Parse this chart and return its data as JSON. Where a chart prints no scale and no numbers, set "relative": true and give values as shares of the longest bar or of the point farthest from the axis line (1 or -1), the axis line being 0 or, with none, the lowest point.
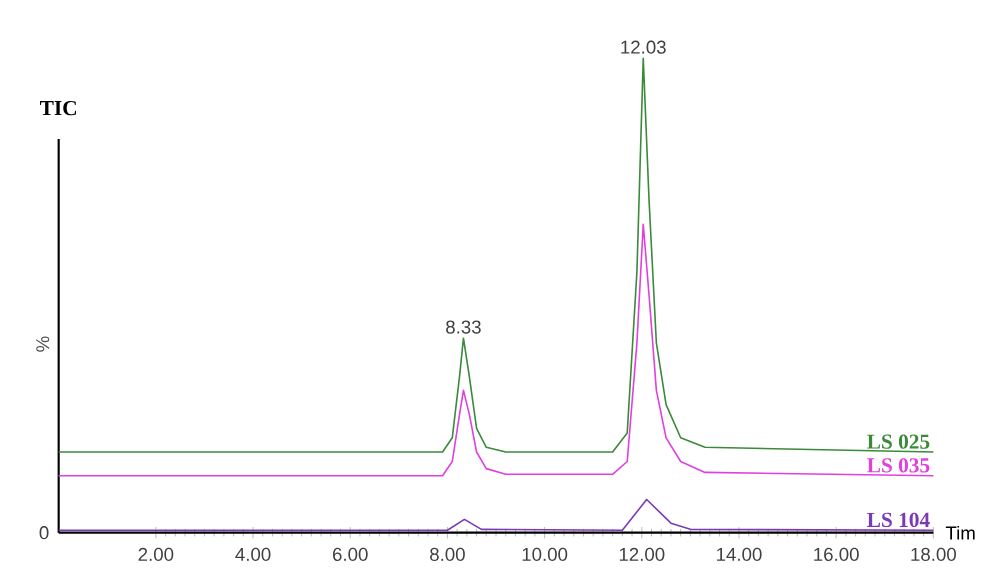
{
  "chart_data": {
    "type": "line",
    "title": "TIC",
    "xlabel": "Tim",
    "ylabel": "%",
    "relative": true,
    "xlim": [
      0,
      18
    ],
    "xticks": [
      {
        "value": 2,
        "label": "2.00"
      },
      {
        "value": 4,
        "label": "4.00"
      },
      {
        "value": 6,
        "label": "6.00"
      },
      {
        "value": 8,
        "label": "8.00"
      },
      {
        "value": 10,
        "label": "10.00"
      },
      {
        "value": 12,
        "label": "12.00"
      },
      {
        "value": 14,
        "label": "14.00"
      },
      {
        "value": 16,
        "label": "16.00"
      },
      {
        "value": 18,
        "label": "18.00"
      }
    ],
    "series": [
      {
        "name": "LS 025",
        "color": "#3a8a3a",
        "x": [
          0,
          7.9,
          8.1,
          8.25,
          8.33,
          8.45,
          8.6,
          8.8,
          9.2,
          11.4,
          11.7,
          11.9,
          12.03,
          12.15,
          12.3,
          12.5,
          12.8,
          13.3,
          18
        ],
        "values": [
          0.17,
          0.17,
          0.2,
          0.33,
          0.41,
          0.33,
          0.22,
          0.18,
          0.17,
          0.17,
          0.21,
          0.55,
          1.0,
          0.7,
          0.4,
          0.27,
          0.2,
          0.18,
          0.17
        ]
      },
      {
        "name": "LS 035",
        "color": "#e040e0",
        "x": [
          0,
          7.9,
          8.1,
          8.25,
          8.33,
          8.45,
          8.6,
          8.8,
          9.2,
          11.4,
          11.7,
          11.9,
          12.03,
          12.15,
          12.3,
          12.5,
          12.8,
          13.3,
          18
        ],
        "values": [
          0.12,
          0.12,
          0.15,
          0.25,
          0.3,
          0.25,
          0.17,
          0.135,
          0.123,
          0.123,
          0.15,
          0.4,
          0.65,
          0.5,
          0.3,
          0.2,
          0.15,
          0.127,
          0.12
        ]
      },
      {
        "name": "LS 104",
        "color": "#7a3ab8",
        "x": [
          0,
          8.0,
          8.35,
          8.7,
          11.6,
          12.1,
          12.6,
          13.0,
          18
        ],
        "values": [
          0.005,
          0.005,
          0.028,
          0.007,
          0.005,
          0.07,
          0.02,
          0.007,
          0.005
        ]
      }
    ],
    "annotations": [
      {
        "text": "8.33",
        "x": 8.33,
        "y": 0.41
      },
      {
        "text": "12.03",
        "x": 12.03,
        "y": 1.0
      },
      "0"
    ],
    "legend": false,
    "grid": false,
    "marker": "none",
    "line_style": "solid"
  }
}
